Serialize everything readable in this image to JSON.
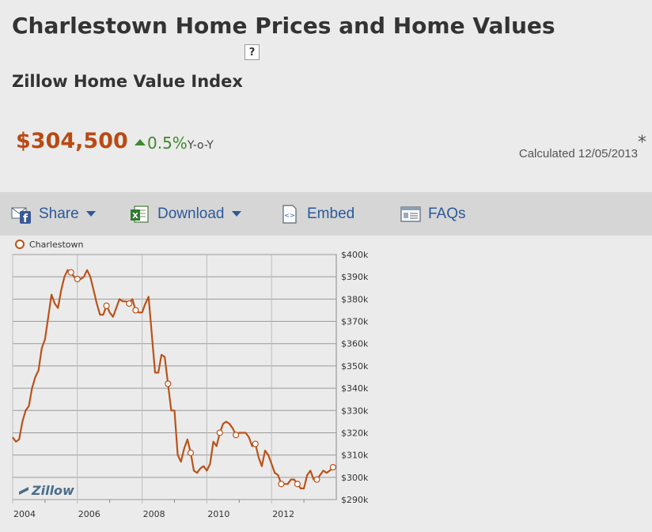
{
  "page": {
    "title": "Charlestown Home Prices and Home Values",
    "help_label": "?",
    "subtitle": "Zillow Home Value Index",
    "value": "$304,500",
    "change": "0.5%",
    "change_suffix": "Y-o-Y",
    "asterisk": "*",
    "calculated": "Calculated 12/05/2013"
  },
  "toolbar": {
    "share": "Share",
    "download": "Download",
    "embed": "Embed",
    "faqs": "FAQs"
  },
  "colors": {
    "line": "#b9531a",
    "accent_green": "#3d8a2a",
    "link_blue": "#2a5a9a"
  },
  "chart_data": {
    "type": "line",
    "legend_position": "top-left",
    "watermark": "Zillow",
    "x_tick_labels": [
      "2004",
      "2006",
      "2008",
      "2010",
      "2012"
    ],
    "y_tick_labels": [
      "$290k",
      "$300k",
      "$310k",
      "$320k",
      "$330k",
      "$340k",
      "$350k",
      "$360k",
      "$370k",
      "$380k",
      "$390k",
      "$400k"
    ],
    "ylim": [
      290000,
      400000
    ],
    "xlim": [
      2004.0,
      2014.0
    ],
    "grid": true,
    "series": [
      {
        "name": "Charlestown",
        "x": [
          2004.0,
          2004.1,
          2004.2,
          2004.3,
          2004.4,
          2004.5,
          2004.6,
          2004.7,
          2004.8,
          2004.9,
          2005.0,
          2005.1,
          2005.2,
          2005.3,
          2005.4,
          2005.5,
          2005.6,
          2005.7,
          2005.8,
          2005.9,
          2006.0,
          2006.1,
          2006.2,
          2006.3,
          2006.4,
          2006.5,
          2006.6,
          2006.7,
          2006.8,
          2006.9,
          2007.0,
          2007.1,
          2007.2,
          2007.3,
          2007.4,
          2007.5,
          2007.6,
          2007.7,
          2007.8,
          2007.9,
          2008.0,
          2008.1,
          2008.2,
          2008.3,
          2008.4,
          2008.5,
          2008.6,
          2008.7,
          2008.8,
          2008.9,
          2009.0,
          2009.1,
          2009.2,
          2009.3,
          2009.4,
          2009.5,
          2009.6,
          2009.7,
          2009.8,
          2009.9,
          2010.0,
          2010.1,
          2010.2,
          2010.3,
          2010.4,
          2010.5,
          2010.6,
          2010.7,
          2010.8,
          2010.9,
          2011.0,
          2011.1,
          2011.2,
          2011.3,
          2011.4,
          2011.5,
          2011.6,
          2011.7,
          2011.8,
          2011.9,
          2012.0,
          2012.1,
          2012.2,
          2012.3,
          2012.4,
          2012.5,
          2012.6,
          2012.7,
          2012.8,
          2012.9,
          2013.0,
          2013.1,
          2013.2,
          2013.3,
          2013.4,
          2013.5,
          2013.6,
          2013.7,
          2013.8,
          2013.9
        ],
        "values": [
          318000,
          316000,
          317000,
          325000,
          330000,
          332000,
          340000,
          345000,
          348000,
          358000,
          362000,
          372000,
          382000,
          378000,
          376000,
          384000,
          390000,
          393000,
          392000,
          390000,
          389000,
          389000,
          390000,
          393000,
          390000,
          384000,
          378000,
          373000,
          373000,
          377000,
          374000,
          372000,
          376000,
          380000,
          379000,
          379000,
          378000,
          380000,
          375000,
          374000,
          374000,
          378000,
          381000,
          364000,
          347000,
          347000,
          355000,
          354000,
          342000,
          330000,
          330000,
          310000,
          307000,
          313000,
          317000,
          311000,
          303000,
          302000,
          304000,
          305000,
          303000,
          306000,
          316000,
          314000,
          320000,
          324000,
          325000,
          324000,
          322000,
          319000,
          320000,
          320000,
          320000,
          318000,
          314000,
          315000,
          309000,
          305000,
          312000,
          310000,
          306000,
          302000,
          301000,
          297000,
          297000,
          297000,
          299000,
          299000,
          297000,
          295000,
          295000,
          301000,
          303000,
          299000,
          299000,
          301000,
          303000,
          302000,
          303000,
          304500
        ],
        "markers": [
          2005.8,
          2006.0,
          2006.9,
          2007.6,
          2007.8,
          2008.8,
          2009.5,
          2010.4,
          2010.9,
          2011.5,
          2012.3,
          2012.8,
          2013.4,
          2013.9
        ]
      }
    ]
  }
}
